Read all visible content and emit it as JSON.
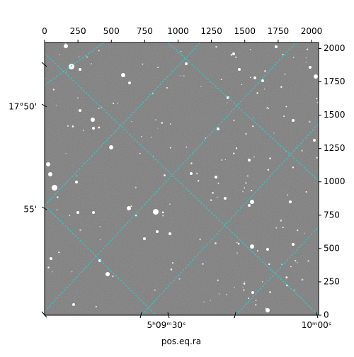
{
  "chart_data": {
    "type": "image",
    "xlabel": "pos.eq.ra",
    "xlim": [
      0,
      2053
    ],
    "xticks": [
      0,
      250,
      500,
      750,
      1000,
      1250,
      1500,
      1750,
      2000
    ],
    "ylim": [
      0,
      2045
    ],
    "yticks": [
      0,
      250,
      500,
      750,
      1000,
      1250,
      1500,
      1750,
      2000
    ],
    "dec_tick_labels": [
      "17°50'",
      "55'"
    ],
    "ra_tick_labels": [
      "5ʰ09ᵐ30ˢ",
      "10ᵐ00ˢ"
    ],
    "grid_color": "#22d3d3"
  }
}
